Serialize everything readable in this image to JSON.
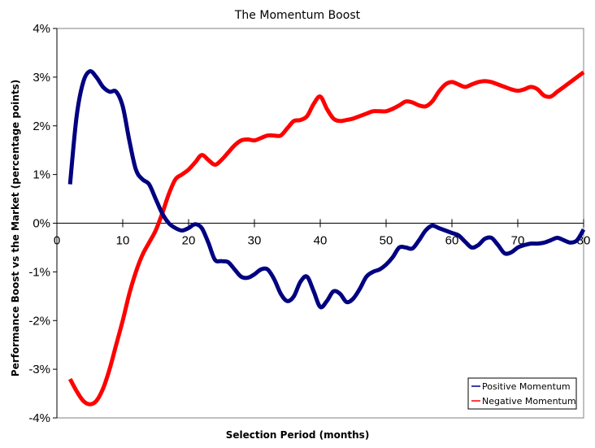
{
  "chart_data": {
    "type": "line",
    "title": "The Momentum Boost",
    "xlabel": "Selection Period (months)",
    "ylabel": "Performance Boost vs the Market (percentage points)",
    "xlim": [
      0,
      80
    ],
    "ylim": [
      -4,
      4
    ],
    "x_ticks": [
      "0",
      "10",
      "20",
      "30",
      "40",
      "50",
      "60",
      "70",
      "80"
    ],
    "x_tick_values": [
      0,
      10,
      20,
      30,
      40,
      50,
      60,
      70,
      80
    ],
    "y_ticks": [
      "4%",
      "3%",
      "2%",
      "1%",
      "0%",
      "-1%",
      "-2%",
      "-3%",
      "-4%"
    ],
    "y_tick_values": [
      4,
      3,
      2,
      1,
      0,
      -1,
      -2,
      -3,
      -4
    ],
    "grid": false,
    "legend_position": "bottom-right",
    "series": [
      {
        "name": "Positive Momentum",
        "color": "#000080",
        "x": [
          2,
          3,
          4,
          5,
          6,
          7,
          8,
          9,
          10,
          11,
          12,
          13,
          14,
          15,
          16,
          17,
          18,
          19,
          20,
          21,
          22,
          23,
          24,
          25,
          26,
          27,
          28,
          29,
          30,
          31,
          32,
          33,
          34,
          35,
          36,
          37,
          38,
          39,
          40,
          41,
          42,
          43,
          44,
          45,
          46,
          47,
          48,
          49,
          50,
          51,
          52,
          53,
          54,
          55,
          56,
          57,
          58,
          59,
          60,
          61,
          62,
          63,
          64,
          65,
          66,
          67,
          68,
          69,
          70,
          71,
          72,
          73,
          74,
          75,
          76,
          77,
          78,
          79,
          80
        ],
        "values": [
          0.8,
          2.2,
          2.9,
          3.12,
          3.0,
          2.8,
          2.7,
          2.7,
          2.4,
          1.7,
          1.1,
          0.9,
          0.8,
          0.5,
          0.2,
          0.0,
          -0.1,
          -0.15,
          -0.1,
          -0.02,
          -0.1,
          -0.4,
          -0.75,
          -0.78,
          -0.8,
          -0.95,
          -1.1,
          -1.12,
          -1.05,
          -0.95,
          -0.95,
          -1.15,
          -1.45,
          -1.6,
          -1.5,
          -1.2,
          -1.1,
          -1.4,
          -1.72,
          -1.6,
          -1.4,
          -1.45,
          -1.62,
          -1.55,
          -1.35,
          -1.1,
          -1.0,
          -0.95,
          -0.85,
          -0.7,
          -0.5,
          -0.5,
          -0.52,
          -0.35,
          -0.15,
          -0.05,
          -0.1,
          -0.15,
          -0.2,
          -0.25,
          -0.38,
          -0.5,
          -0.45,
          -0.32,
          -0.3,
          -0.45,
          -0.62,
          -0.6,
          -0.5,
          -0.45,
          -0.42,
          -0.42,
          -0.4,
          -0.35,
          -0.3,
          -0.35,
          -0.4,
          -0.35,
          -0.13
        ]
      },
      {
        "name": "Negative Momentum",
        "color": "#ff0000",
        "x": [
          2,
          3,
          4,
          5,
          6,
          7,
          8,
          9,
          10,
          11,
          12,
          13,
          14,
          15,
          16,
          17,
          18,
          19,
          20,
          21,
          22,
          23,
          24,
          25,
          26,
          27,
          28,
          29,
          30,
          31,
          32,
          33,
          34,
          35,
          36,
          37,
          38,
          39,
          40,
          41,
          42,
          43,
          44,
          45,
          46,
          47,
          48,
          49,
          50,
          51,
          52,
          53,
          54,
          55,
          56,
          57,
          58,
          59,
          60,
          61,
          62,
          63,
          64,
          65,
          66,
          67,
          68,
          69,
          70,
          71,
          72,
          73,
          74,
          75,
          76,
          77,
          78,
          79,
          80
        ],
        "values": [
          -3.2,
          -3.45,
          -3.65,
          -3.72,
          -3.65,
          -3.4,
          -3.0,
          -2.5,
          -2.0,
          -1.45,
          -1.0,
          -0.65,
          -0.4,
          -0.15,
          0.2,
          0.6,
          0.9,
          1.0,
          1.1,
          1.25,
          1.4,
          1.3,
          1.2,
          1.3,
          1.45,
          1.6,
          1.7,
          1.72,
          1.7,
          1.75,
          1.8,
          1.8,
          1.8,
          1.95,
          2.1,
          2.12,
          2.2,
          2.45,
          2.6,
          2.35,
          2.15,
          2.1,
          2.12,
          2.15,
          2.2,
          2.25,
          2.3,
          2.3,
          2.3,
          2.35,
          2.42,
          2.5,
          2.48,
          2.42,
          2.4,
          2.5,
          2.7,
          2.85,
          2.9,
          2.85,
          2.8,
          2.85,
          2.9,
          2.92,
          2.9,
          2.85,
          2.8,
          2.75,
          2.72,
          2.75,
          2.8,
          2.75,
          2.62,
          2.6,
          2.7,
          2.8,
          2.9,
          3.0,
          3.1
        ]
      }
    ]
  }
}
